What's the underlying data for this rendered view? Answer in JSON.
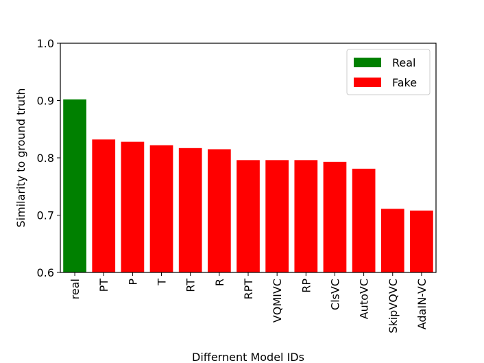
{
  "chart_data": {
    "type": "bar",
    "categories": [
      "real",
      "PT",
      "P",
      "T",
      "RT",
      "R",
      "RPT",
      "VQMIVC",
      "RP",
      "ClsVC",
      "AutoVC",
      "SkipVQVC",
      "AdaIN-VC"
    ],
    "values": [
      0.902,
      0.832,
      0.828,
      0.822,
      0.817,
      0.815,
      0.796,
      0.796,
      0.796,
      0.793,
      0.781,
      0.711,
      0.708
    ],
    "bar_groups": [
      "Real",
      "Fake",
      "Fake",
      "Fake",
      "Fake",
      "Fake",
      "Fake",
      "Fake",
      "Fake",
      "Fake",
      "Fake",
      "Fake",
      "Fake"
    ],
    "xlabel": "Differnent Model IDs",
    "ylabel": "Similarity to ground truth",
    "ylim": [
      0.6,
      1.0
    ],
    "yticks": [
      0.6,
      0.7,
      0.8,
      0.9,
      1.0
    ],
    "ytick_labels": [
      "0.6",
      "0.7",
      "0.8",
      "0.9",
      "1.0"
    ],
    "grid": false,
    "legend": {
      "placement": "top-right",
      "entries": [
        {
          "label": "Real",
          "color": "#008000"
        },
        {
          "label": "Fake",
          "color": "#ff0000"
        }
      ]
    },
    "colors": {
      "Real": "#008000",
      "Fake": "#ff0000"
    }
  }
}
